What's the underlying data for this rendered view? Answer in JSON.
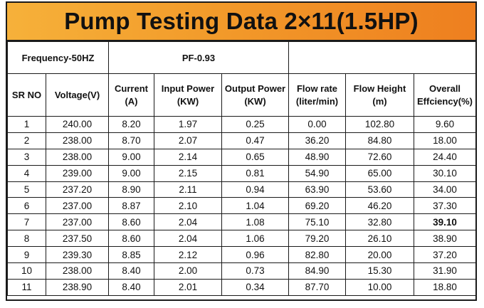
{
  "title": "Pump Testing Data 2×11(1.5HP)",
  "info": {
    "frequency": "Frequency-50HZ",
    "pf": "PF-0.93",
    "blank": ""
  },
  "columns": [
    "SR NO",
    "Voltage(V)",
    "Current (A)",
    "Input Power (KW)",
    "Output Power (KW)",
    "Flow rate (liter/min)",
    "Flow Height (m)",
    "Overall Effciency(%)"
  ],
  "rows": [
    [
      "1",
      "240.00",
      "8.20",
      "1.97",
      "0.25",
      "0.00",
      "102.80",
      "9.60"
    ],
    [
      "2",
      "238.00",
      "8.70",
      "2.07",
      "0.47",
      "36.20",
      "84.80",
      "18.00"
    ],
    [
      "3",
      "238.00",
      "9.00",
      "2.14",
      "0.65",
      "48.90",
      "72.60",
      "24.40"
    ],
    [
      "4",
      "239.00",
      "9.00",
      "2.15",
      "0.81",
      "54.90",
      "65.00",
      "30.10"
    ],
    [
      "5",
      "237.20",
      "8.90",
      "2.11",
      "0.94",
      "63.90",
      "53.60",
      "34.00"
    ],
    [
      "6",
      "237.00",
      "8.87",
      "2.10",
      "1.04",
      "69.20",
      "46.20",
      "37.30"
    ],
    [
      "7",
      "237.00",
      "8.60",
      "2.04",
      "1.08",
      "75.10",
      "32.80",
      "39.10"
    ],
    [
      "8",
      "237.50",
      "8.60",
      "2.04",
      "1.06",
      "79.20",
      "26.10",
      "38.90"
    ],
    [
      "9",
      "239.30",
      "8.85",
      "2.12",
      "0.96",
      "82.80",
      "20.00",
      "37.20"
    ],
    [
      "10",
      "238.00",
      "8.40",
      "2.00",
      "0.73",
      "84.90",
      "15.30",
      "31.90"
    ],
    [
      "11",
      "238.90",
      "8.40",
      "2.01",
      "0.34",
      "87.70",
      "10.00",
      "18.80"
    ]
  ]
}
